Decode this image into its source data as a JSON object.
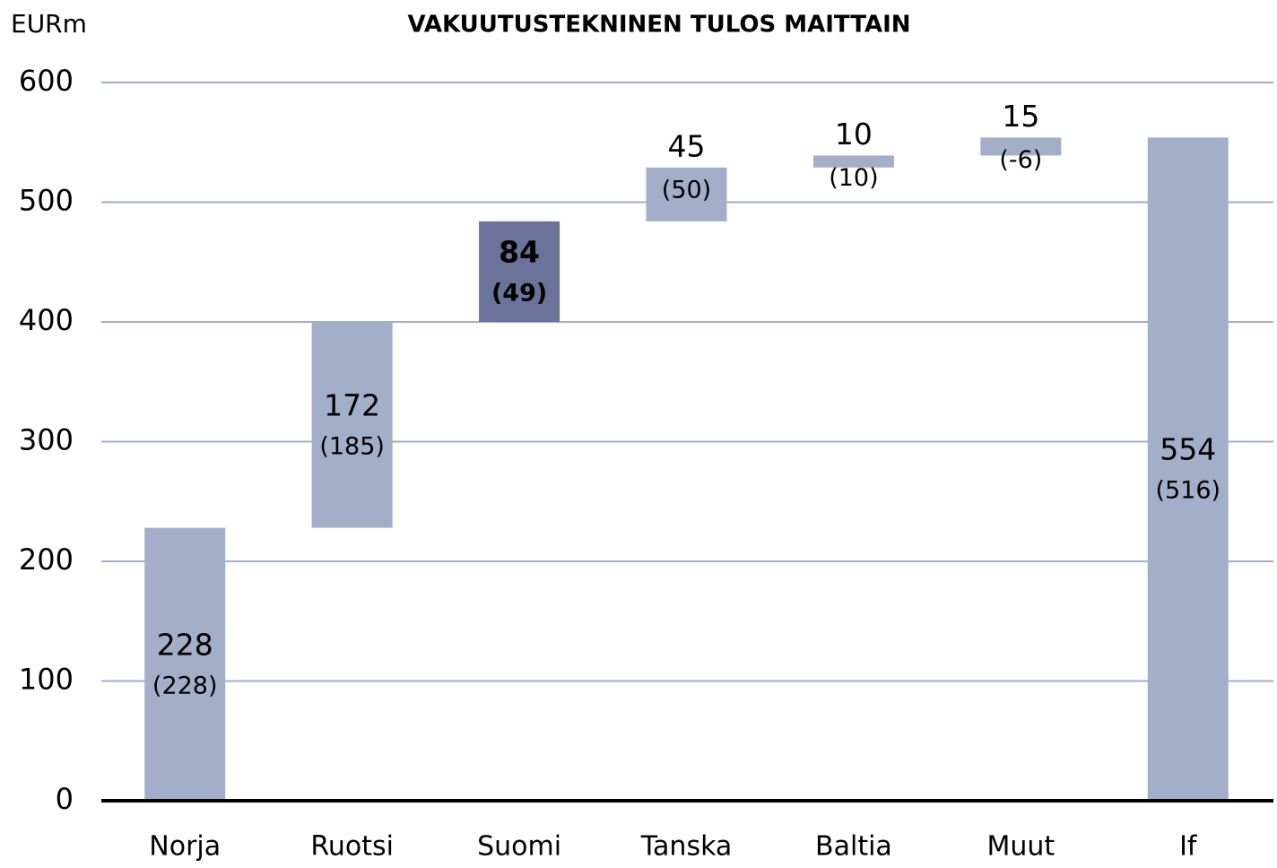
{
  "chart_data": {
    "type": "waterfall",
    "title": "VAKUUTUSTEKNINEN TULOS MAITTAIN",
    "y_axis_label": "EURm",
    "categories": [
      "Norja",
      "Ruotsi",
      "Suomi",
      "Tanska",
      "Baltia",
      "Muut",
      "If"
    ],
    "values": [
      228,
      172,
      84,
      45,
      10,
      15,
      554
    ],
    "previous_value_labels": [
      "(228)",
      "(185)",
      "(49)",
      "(50)",
      "(10)",
      "(-6)",
      "(516)"
    ],
    "totals": [
      false,
      false,
      false,
      false,
      false,
      false,
      true
    ],
    "colors": [
      "#a3aec8",
      "#a3aec8",
      "#6b739a",
      "#a3aec8",
      "#a3aec8",
      "#a3aec8",
      "#a3aec8"
    ],
    "highlight": [
      false,
      false,
      true,
      false,
      false,
      false,
      false
    ],
    "ylim": [
      0,
      600
    ],
    "yticks": [
      0,
      100,
      200,
      300,
      400,
      500,
      600
    ],
    "grid": true
  }
}
